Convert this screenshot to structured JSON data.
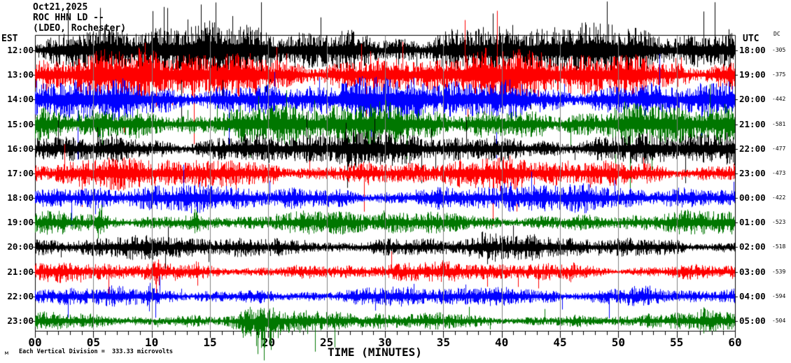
{
  "header": {
    "date": "Oct21,2025",
    "station": "ROC HHN LD --",
    "affiliation": "(LDEO, Rochester)"
  },
  "axes": {
    "left_tz": "EST",
    "right_tz": "UTC",
    "dc_header": "DC",
    "x_label": "TIME (MINUTES)",
    "x_ticks": [
      "00",
      "05",
      "10",
      "15",
      "20",
      "25",
      "30",
      "35",
      "40",
      "45",
      "50",
      "55",
      "60"
    ],
    "scale_note": "Each Vertical Division =  333.33 microvolts",
    "watermark": "м"
  },
  "colors": {
    "background": "#ffffff",
    "frame": "#000000",
    "grid": "#808080",
    "trace_cycle": [
      "#000000",
      "#ff0000",
      "#0000ff",
      "#007700"
    ]
  },
  "chart_data": {
    "type": "line",
    "subtype": "seismogram-helicorder",
    "title": "ROC HHN LD -- (LDEO, Rochester) Oct21,2025",
    "xlabel": "TIME (MINUTES)",
    "x_range_minutes": [
      0,
      60
    ],
    "minutes_per_line": 60,
    "grid": "vertical lines every 5 minutes",
    "vertical_division_microvolts": 333.33,
    "rows": [
      {
        "est": "12:00",
        "utc": "18:00",
        "dc": "-305",
        "color": "#000000",
        "amp": 28,
        "spike_prob": 0.05,
        "events": []
      },
      {
        "est": "13:00",
        "utc": "19:00",
        "dc": "-375",
        "color": "#ff0000",
        "amp": 26,
        "spike_prob": 0.03,
        "events": []
      },
      {
        "est": "14:00",
        "utc": "20:00",
        "dc": "-442",
        "color": "#0000ff",
        "amp": 23,
        "spike_prob": 0.025,
        "events": []
      },
      {
        "est": "15:00",
        "utc": "21:00",
        "dc": "-581",
        "color": "#007700",
        "amp": 22,
        "spike_prob": 0.022,
        "events": []
      },
      {
        "est": "16:00",
        "utc": "22:00",
        "dc": "-477",
        "color": "#000000",
        "amp": 18,
        "spike_prob": 0.02,
        "events": []
      },
      {
        "est": "17:00",
        "utc": "23:00",
        "dc": "-473",
        "color": "#ff0000",
        "amp": 16,
        "spike_prob": 0.018,
        "events": [
          {
            "c": 14,
            "w": 1.5,
            "a": 8
          }
        ]
      },
      {
        "est": "18:00",
        "utc": "00:00",
        "dc": "-422",
        "color": "#0000ff",
        "amp": 14,
        "spike_prob": 0.015,
        "events": [
          {
            "c": 40.6,
            "w": 1.2,
            "a": 16
          }
        ]
      },
      {
        "est": "19:00",
        "utc": "01:00",
        "dc": "-523",
        "color": "#007700",
        "amp": 12,
        "spike_prob": 0.012,
        "events": [
          {
            "c": 5.6,
            "w": 0.5,
            "a": 22
          },
          {
            "c": 13.7,
            "w": 0.5,
            "a": 20
          },
          {
            "c": 30,
            "w": 1.5,
            "a": 8
          }
        ]
      },
      {
        "est": "20:00",
        "utc": "02:00",
        "dc": "-518",
        "color": "#000000",
        "amp": 12,
        "spike_prob": 0.012,
        "events": [
          {
            "c": 23.5,
            "w": 1.2,
            "a": 8
          },
          {
            "c": 38.6,
            "w": 2.2,
            "a": 12
          }
        ]
      },
      {
        "est": "21:00",
        "utc": "03:00",
        "dc": "-539",
        "color": "#ff0000",
        "amp": 10,
        "spike_prob": 0.012,
        "events": [
          {
            "c": 10.4,
            "w": 0.4,
            "a": 26
          },
          {
            "c": 13.9,
            "w": 0.4,
            "a": 22
          },
          {
            "c": 46,
            "w": 1,
            "a": 8
          }
        ]
      },
      {
        "est": "22:00",
        "utc": "04:00",
        "dc": "-594",
        "color": "#0000ff",
        "amp": 10,
        "spike_prob": 0.012,
        "events": [
          {
            "c": 9.8,
            "w": 0.4,
            "a": 18
          },
          {
            "c": 52,
            "w": 7,
            "a": 7
          }
        ]
      },
      {
        "est": "23:00",
        "utc": "05:00",
        "dc": "-504",
        "color": "#007700",
        "amp": 9,
        "spike_prob": 0.012,
        "events": [
          {
            "c": 19.3,
            "w": 3.2,
            "au": 26,
            "ad": 58
          },
          {
            "c": 23,
            "w": 2,
            "a": 10
          },
          {
            "c": 52.5,
            "w": 1,
            "a": 10
          },
          {
            "c": 57.5,
            "w": 1,
            "a": 12
          }
        ]
      }
    ]
  }
}
